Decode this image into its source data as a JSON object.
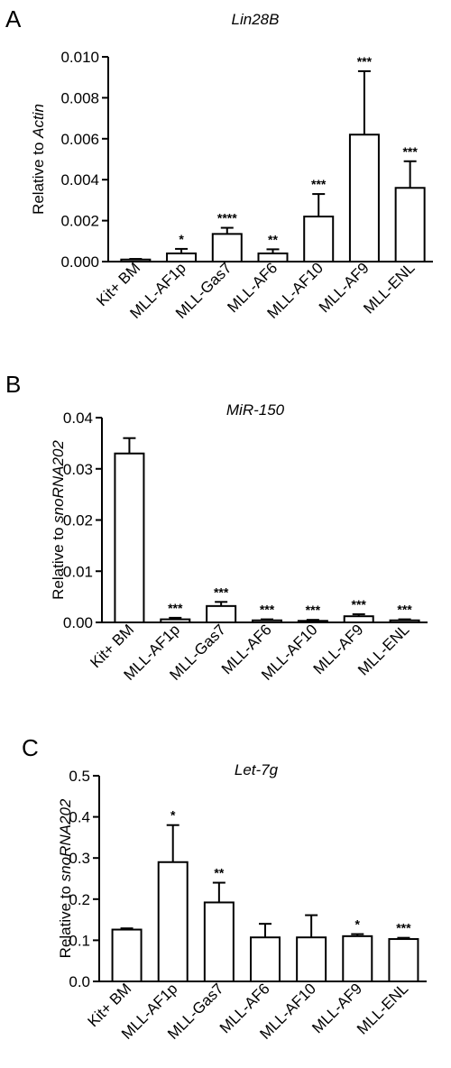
{
  "chart_data": [
    {
      "type": "bar",
      "panel": "A",
      "title": "Lin28B",
      "ylabel_prefix": "Relative to ",
      "ylabel_italic": "Actin",
      "categories": [
        "Kit+ BM",
        "MLL-AF1p",
        "MLL-Gas7",
        "MLL-AF6",
        "MLL-AF10",
        "MLL-AF9",
        "MLL-ENL"
      ],
      "values": [
        0.0001,
        0.0004,
        0.00135,
        0.0004,
        0.0022,
        0.0062,
        0.0036
      ],
      "errors": [
        3e-05,
        0.00022,
        0.0003,
        0.0002,
        0.0011,
        0.0031,
        0.0013
      ],
      "significance": [
        "",
        "*",
        "****",
        "**",
        "***",
        "***",
        "***"
      ],
      "ylim": [
        0,
        0.01
      ],
      "yticks": [
        0.0,
        0.002,
        0.004,
        0.006,
        0.008,
        0.01
      ],
      "ytick_labels": [
        "0.000",
        "0.002",
        "0.004",
        "0.006",
        "0.008",
        "0.010"
      ]
    },
    {
      "type": "bar",
      "panel": "B",
      "title": "MiR-150",
      "ylabel_prefix": "Relative to ",
      "ylabel_italic": "snoRNA202",
      "categories": [
        "Kit+ BM",
        "MLL-AF1p",
        "MLL-Gas7",
        "MLL-AF6",
        "MLL-AF10",
        "MLL-AF9",
        "MLL-ENL"
      ],
      "values": [
        0.033,
        0.0006,
        0.0032,
        0.0004,
        0.0003,
        0.0012,
        0.0004
      ],
      "errors": [
        0.003,
        0.0003,
        0.0008,
        0.0002,
        0.0002,
        0.0004,
        0.0002
      ],
      "significance": [
        "",
        "***",
        "***",
        "***",
        "***",
        "***",
        "***"
      ],
      "ylim": [
        0,
        0.04
      ],
      "yticks": [
        0.0,
        0.01,
        0.02,
        0.03,
        0.04
      ],
      "ytick_labels": [
        "0.00",
        "0.01",
        "0.02",
        "0.03",
        "0.04"
      ]
    },
    {
      "type": "bar",
      "panel": "C",
      "title": "Let-7g",
      "ylabel_prefix": "Relative to ",
      "ylabel_italic": "snoRNA202",
      "categories": [
        "Kit+ BM",
        "MLL-AF1p",
        "MLL-Gas7",
        "MLL-AF6",
        "MLL-AF10",
        "MLL-AF9",
        "MLL-ENL"
      ],
      "values": [
        0.126,
        0.29,
        0.192,
        0.107,
        0.107,
        0.11,
        0.103
      ],
      "errors": [
        0.003,
        0.09,
        0.048,
        0.033,
        0.054,
        0.005,
        0.003
      ],
      "significance": [
        "",
        "*",
        "**",
        "",
        "",
        "*",
        "***"
      ],
      "ylim": [
        0,
        0.5
      ],
      "yticks": [
        0.0,
        0.1,
        0.2,
        0.3,
        0.4,
        0.5
      ],
      "ytick_labels": [
        "0.0",
        "0.1",
        "0.2",
        "0.3",
        "0.4",
        "0.5"
      ]
    }
  ]
}
